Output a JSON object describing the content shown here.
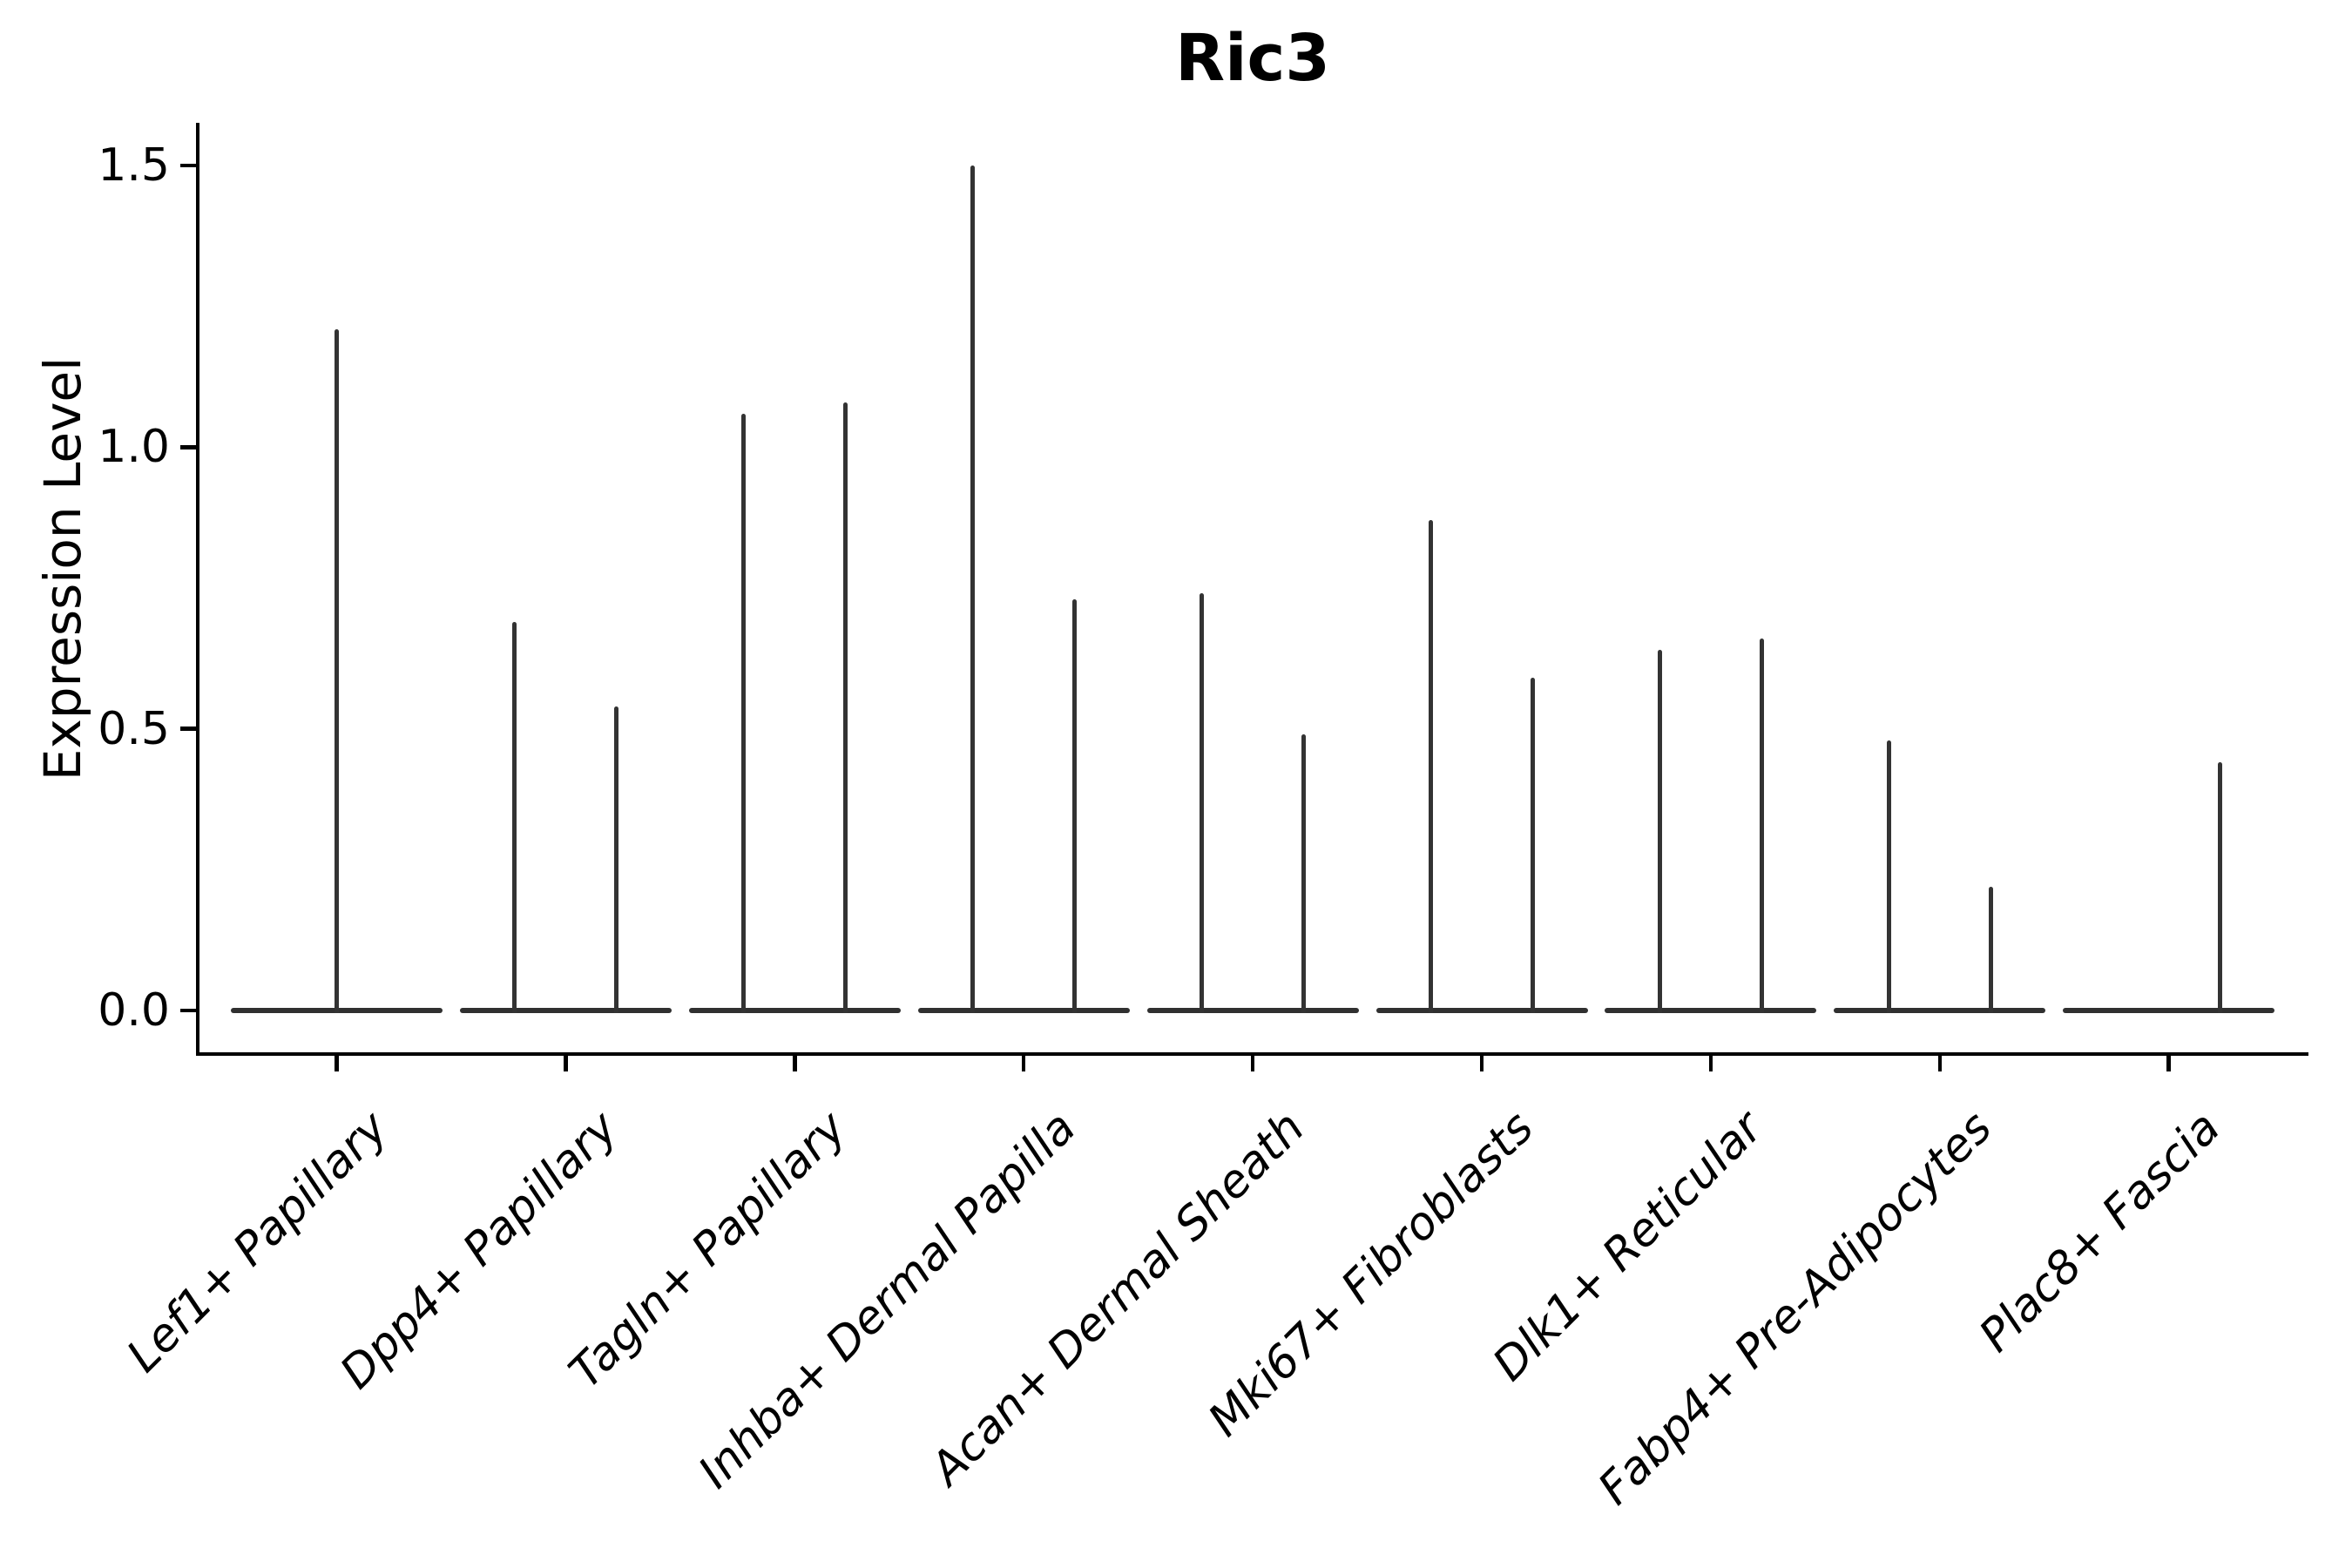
{
  "chart_data": {
    "type": "violin",
    "title": "Ric3",
    "ylabel": "Expression Level",
    "xlabel": "",
    "grid": false,
    "legend": "none",
    "ylim": [
      -0.08,
      1.58
    ],
    "yticks": [
      0.0,
      0.5,
      1.0,
      1.5
    ],
    "categories": [
      "Lef1+ Papillary",
      "Dpp4+ Papillary",
      "Tagln+ Papillary",
      "Inhba+ Dermal Papilla",
      "Acan+ Dermal Sheath",
      "Mki67+ Fibroblasts",
      "Dlk1+ Reticular",
      "Fabp4+ Pre-Adipocytes",
      "Plac8+ Fascia"
    ],
    "violins": [
      {
        "category": "Lef1+ Papillary",
        "spikes": [
          {
            "position": "center",
            "max_expression": 1.21
          }
        ]
      },
      {
        "category": "Dpp4+ Papillary",
        "spikes": [
          {
            "position": "left",
            "max_expression": 0.69
          },
          {
            "position": "right",
            "max_expression": 0.54
          }
        ]
      },
      {
        "category": "Tagln+ Papillary",
        "spikes": [
          {
            "position": "left",
            "max_expression": 1.06
          },
          {
            "position": "right",
            "max_expression": 1.08
          }
        ]
      },
      {
        "category": "Inhba+ Dermal Papilla",
        "spikes": [
          {
            "position": "left",
            "max_expression": 1.5
          },
          {
            "position": "right",
            "max_expression": 0.73
          }
        ]
      },
      {
        "category": "Acan+ Dermal Sheath",
        "spikes": [
          {
            "position": "left",
            "max_expression": 0.74
          },
          {
            "position": "right",
            "max_expression": 0.49
          }
        ]
      },
      {
        "category": "Mki67+ Fibroblasts",
        "spikes": [
          {
            "position": "left",
            "max_expression": 0.87
          },
          {
            "position": "right",
            "max_expression": 0.59
          }
        ]
      },
      {
        "category": "Dlk1+ Reticular",
        "spikes": [
          {
            "position": "left",
            "max_expression": 0.64
          },
          {
            "position": "right",
            "max_expression": 0.66
          }
        ]
      },
      {
        "category": "Fabp4+ Pre-Adipocytes",
        "spikes": [
          {
            "position": "left",
            "max_expression": 0.48
          },
          {
            "position": "right",
            "max_expression": 0.22
          }
        ]
      },
      {
        "category": "Plac8+ Fascia",
        "spikes": [
          {
            "position": "right",
            "max_expression": 0.44
          }
        ]
      }
    ],
    "baseline_value": 0.0,
    "colors": {
      "violin": "#333333",
      "axis": "#000000",
      "text": "#000000",
      "background": "#ffffff"
    }
  }
}
